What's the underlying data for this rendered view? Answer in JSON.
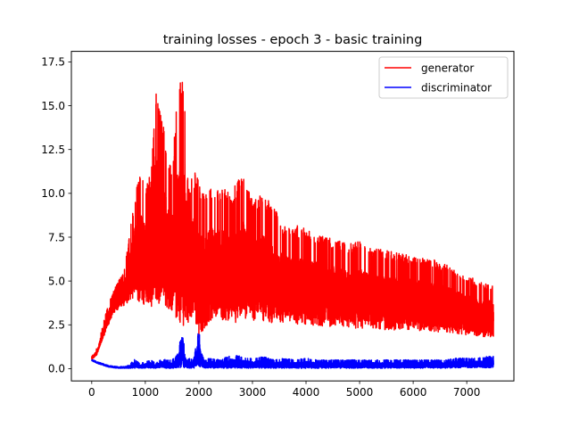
{
  "chart_data": {
    "type": "line",
    "title": "training losses - epoch 3 - basic training",
    "xlabel": "",
    "ylabel": "",
    "xlim": [
      -380,
      7880
    ],
    "ylim": [
      -0.7,
      18.1
    ],
    "xticks": [
      0,
      1000,
      2000,
      3000,
      4000,
      5000,
      6000,
      7000
    ],
    "yticks": [
      0.0,
      2.5,
      5.0,
      7.5,
      10.0,
      12.5,
      15.0,
      17.5
    ],
    "ytick_labels": [
      "0.0",
      "2.5",
      "5.0",
      "7.5",
      "10.0",
      "12.5",
      "15.0",
      "17.5"
    ],
    "grid": false,
    "legend_position": "top-right",
    "n_points": 7500,
    "series": [
      {
        "name": "generator",
        "color": "#ff0000",
        "envelope": {
          "x": [
            0,
            100,
            200,
            300,
            400,
            500,
            600,
            700,
            800,
            900,
            1000,
            1100,
            1200,
            1300,
            1400,
            1500,
            1600,
            1700,
            1800,
            1900,
            2000,
            2100,
            2200,
            2400,
            2600,
            2800,
            3000,
            3200,
            3400,
            3600,
            3800,
            4000,
            4200,
            4400,
            4600,
            4800,
            5000,
            5200,
            5400,
            5600,
            5800,
            6000,
            6200,
            6400,
            6600,
            6800,
            7000,
            7200,
            7400,
            7500
          ],
          "low": [
            0.5,
            0.8,
            1.6,
            2.4,
            3.1,
            3.4,
            3.6,
            3.8,
            4.0,
            3.8,
            3.6,
            3.5,
            3.6,
            3.8,
            3.4,
            3.2,
            2.8,
            2.2,
            2.6,
            3.0,
            1.6,
            2.2,
            2.6,
            2.8,
            2.6,
            2.7,
            2.7,
            2.6,
            2.6,
            2.6,
            2.5,
            2.5,
            2.4,
            2.4,
            2.4,
            2.3,
            2.3,
            2.3,
            2.2,
            2.2,
            2.2,
            2.2,
            2.1,
            2.1,
            2.0,
            2.0,
            1.9,
            1.8,
            1.8,
            1.8
          ],
          "high": [
            0.7,
            1.2,
            2.4,
            3.6,
            4.4,
            5.0,
            5.6,
            7.5,
            10.0,
            11.5,
            10.5,
            11.3,
            16.6,
            14.8,
            12.6,
            11.5,
            15.6,
            17.5,
            10.4,
            11.3,
            10.9,
            9.9,
            10.6,
            10.4,
            10.0,
            11.2,
            9.6,
            10.0,
            9.2,
            8.2,
            8.2,
            8.0,
            7.8,
            7.6,
            7.3,
            7.1,
            7.3,
            6.9,
            6.8,
            6.7,
            6.6,
            6.4,
            6.3,
            6.2,
            6.0,
            5.6,
            5.4,
            5.0,
            4.9,
            4.8
          ]
        }
      },
      {
        "name": "discriminator",
        "color": "#0000ff",
        "envelope": {
          "x": [
            0,
            100,
            200,
            300,
            400,
            500,
            600,
            700,
            800,
            900,
            1000,
            1100,
            1200,
            1300,
            1400,
            1500,
            1600,
            1650,
            1700,
            1750,
            1800,
            1900,
            1950,
            2000,
            2050,
            2100,
            2200,
            2400,
            2600,
            2800,
            3000,
            3200,
            3400,
            3600,
            3800,
            4000,
            4200,
            4400,
            4600,
            4800,
            5000,
            5200,
            5400,
            5600,
            5800,
            6000,
            6200,
            6400,
            6600,
            6800,
            7000,
            7200,
            7400,
            7500
          ],
          "low": [
            0.45,
            0.3,
            0.2,
            0.1,
            0.05,
            0.02,
            0.02,
            0.02,
            0.02,
            0.02,
            0.02,
            0.02,
            0.02,
            0.02,
            0.02,
            0.02,
            0.02,
            0.05,
            0.05,
            0.05,
            0.02,
            0.02,
            0.05,
            0.1,
            0.05,
            0.02,
            0.02,
            0.02,
            0.02,
            0.02,
            0.02,
            0.02,
            0.02,
            0.02,
            0.02,
            0.02,
            0.02,
            0.02,
            0.02,
            0.02,
            0.02,
            0.02,
            0.02,
            0.02,
            0.02,
            0.02,
            0.02,
            0.02,
            0.02,
            0.05,
            0.05,
            0.05,
            0.05,
            0.05
          ],
          "high": [
            0.55,
            0.4,
            0.3,
            0.2,
            0.15,
            0.12,
            0.12,
            0.2,
            0.55,
            0.3,
            0.4,
            0.5,
            0.3,
            0.6,
            0.5,
            0.5,
            0.8,
            1.6,
            1.9,
            0.9,
            0.6,
            0.5,
            1.4,
            2.5,
            0.9,
            0.5,
            0.6,
            0.5,
            0.8,
            0.7,
            0.6,
            0.7,
            0.5,
            0.6,
            0.5,
            0.6,
            0.5,
            0.5,
            0.5,
            0.5,
            0.5,
            0.5,
            0.5,
            0.5,
            0.5,
            0.5,
            0.5,
            0.5,
            0.5,
            0.6,
            0.6,
            0.6,
            0.7,
            0.7
          ]
        }
      }
    ]
  }
}
